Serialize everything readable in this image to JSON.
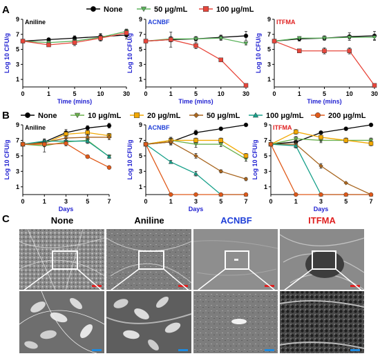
{
  "panel_letters": [
    "A",
    "B",
    "C"
  ],
  "colors": {
    "axis_label": "#1f1fd1",
    "none": "#000000",
    "c10": "#6ab04c",
    "c20": "#f2a800",
    "c50": "#a8651e",
    "c100": "#17a08a",
    "c200": "#e05a1a",
    "a50": "#5bb35b",
    "a100": "#e8463b",
    "scale_red": "#e02020",
    "scale_blue": "#1e8ae0"
  },
  "legend_A": [
    {
      "label": "None",
      "color": "#000000",
      "marker": "circle"
    },
    {
      "label": "50 μg/mL",
      "color": "#5bb35b",
      "marker": "triangle-down"
    },
    {
      "label": "100 μg/mL",
      "color": "#e8463b",
      "marker": "square"
    }
  ],
  "legend_B": [
    {
      "label": "None",
      "color": "#000000",
      "marker": "circle"
    },
    {
      "label": "10 μg/mL",
      "color": "#6ab04c",
      "marker": "triangle-down"
    },
    {
      "label": "20 μg/mL",
      "color": "#f2a800",
      "marker": "square"
    },
    {
      "label": "50 μg/mL",
      "color": "#a8651e",
      "marker": "diamond"
    },
    {
      "label": "100 μg/mL",
      "color": "#17a08a",
      "marker": "triangle-up"
    },
    {
      "label": "200 μg/mL",
      "color": "#e05a1a",
      "marker": "circle"
    }
  ],
  "sem_labels": [
    {
      "label": "None",
      "color": "#000000"
    },
    {
      "label": "Aniline",
      "color": "#000000"
    },
    {
      "label": "ACNBF",
      "color": "#1f3fd8"
    },
    {
      "label": "ITFMA",
      "color": "#e02020"
    }
  ],
  "chart_data": [
    {
      "type": "line",
      "panel": "A",
      "title": "Aniline",
      "title_color": "#000000",
      "x": [
        "0",
        "1",
        "5",
        "10",
        "30"
      ],
      "xlabel": "Time (mins)",
      "ylabel": "Log 10 CFU/g",
      "ylim": [
        0,
        9
      ],
      "yticks": [
        1,
        3,
        5,
        7,
        9
      ],
      "series": [
        {
          "name": "None",
          "values": [
            6.1,
            6.3,
            6.5,
            6.7,
            6.9
          ],
          "err": [
            0.2,
            0.2,
            0.3,
            0.4,
            0.5
          ]
        },
        {
          "name": "50 μg/mL",
          "values": [
            6.1,
            5.9,
            6.1,
            6.6,
            7.4
          ],
          "err": [
            0.2,
            0.2,
            0.3,
            0.4,
            0.3
          ]
        },
        {
          "name": "100 μg/mL",
          "values": [
            6.1,
            5.6,
            5.9,
            6.5,
            7.2
          ],
          "err": [
            0.2,
            0.2,
            0.4,
            0.4,
            0.4
          ]
        }
      ]
    },
    {
      "type": "line",
      "panel": "A",
      "title": "ACNBF",
      "title_color": "#1f3fd8",
      "x": [
        "0",
        "1",
        "5",
        "10",
        "30"
      ],
      "xlabel": "Time (mins)",
      "ylabel": "Log 10 CFU/g",
      "ylim": [
        0,
        9
      ],
      "yticks": [
        1,
        3,
        5,
        7,
        9
      ],
      "series": [
        {
          "name": "None",
          "values": [
            6.1,
            6.3,
            6.4,
            6.6,
            6.8
          ],
          "err": [
            0.2,
            0.3,
            0.3,
            0.3,
            0.6
          ]
        },
        {
          "name": "50 μg/mL",
          "values": [
            6.1,
            6.4,
            6.4,
            6.5,
            5.8
          ],
          "err": [
            0.2,
            0.3,
            0.3,
            0.3,
            0.2
          ]
        },
        {
          "name": "100 μg/mL",
          "values": [
            6.1,
            6.3,
            5.5,
            3.6,
            0.2
          ],
          "err": [
            0.2,
            1.0,
            0.4,
            0.0,
            0.0
          ]
        }
      ]
    },
    {
      "type": "line",
      "panel": "A",
      "title": "ITFMA",
      "title_color": "#e02020",
      "x": [
        "0",
        "1",
        "5",
        "10",
        "30"
      ],
      "xlabel": "Time (mins)",
      "ylabel": "Log 10 CFU/g",
      "ylim": [
        0,
        9
      ],
      "yticks": [
        1,
        3,
        5,
        7,
        9
      ],
      "series": [
        {
          "name": "None",
          "values": [
            6.1,
            6.4,
            6.5,
            6.7,
            6.8
          ],
          "err": [
            0.2,
            0.3,
            0.3,
            0.5,
            0.6
          ]
        },
        {
          "name": "50 μg/mL",
          "values": [
            6.1,
            6.5,
            6.5,
            6.6,
            6.6
          ],
          "err": [
            0.2,
            0.2,
            0.2,
            0.2,
            0.3
          ]
        },
        {
          "name": "100 μg/mL",
          "values": [
            6.1,
            4.8,
            4.8,
            4.8,
            0.2
          ],
          "err": [
            0.2,
            0.1,
            0.4,
            0.4,
            0.0
          ]
        }
      ]
    },
    {
      "type": "line",
      "panel": "B",
      "title": "Aniline",
      "title_color": "#000000",
      "x": [
        "0",
        "1",
        "3",
        "5",
        "7"
      ],
      "xlabel": "Days",
      "ylabel": "Log 10 CFU/g",
      "ylim": [
        0,
        9
      ],
      "yticks": [
        1,
        3,
        5,
        7,
        9
      ],
      "series": [
        {
          "name": "None",
          "values": [
            6.5,
            6.8,
            8.0,
            8.6,
            8.9
          ],
          "err": [
            0.2,
            0.3,
            0.4,
            0.3,
            0.3
          ]
        },
        {
          "name": "10 μg/mL",
          "values": [
            6.5,
            6.3,
            6.8,
            7.0,
            4.9
          ],
          "err": [
            0.2,
            0.8,
            0.4,
            0.3,
            0.2
          ]
        },
        {
          "name": "20 μg/mL",
          "values": [
            6.5,
            6.6,
            7.8,
            8.0,
            7.6
          ],
          "err": [
            0.2,
            0.3,
            0.4,
            0.4,
            0.3
          ]
        },
        {
          "name": "50 μg/mL",
          "values": [
            6.5,
            6.7,
            7.3,
            7.4,
            7.4
          ],
          "err": [
            0.2,
            0.3,
            0.3,
            0.4,
            0.3
          ]
        },
        {
          "name": "100 μg/mL",
          "values": [
            6.5,
            6.9,
            6.9,
            6.9,
            4.9
          ],
          "err": [
            0.2,
            0.3,
            0.3,
            0.3,
            0.2
          ]
        },
        {
          "name": "200 μg/mL",
          "values": [
            6.5,
            6.5,
            6.6,
            4.9,
            3.5
          ],
          "err": [
            0.2,
            0.3,
            0.3,
            0.2,
            0.2
          ]
        }
      ]
    },
    {
      "type": "line",
      "panel": "B",
      "title": "ACNBF",
      "title_color": "#1f3fd8",
      "x": [
        "0",
        "1",
        "3",
        "5",
        "7"
      ],
      "xlabel": "Days",
      "ylabel": "Log 10 CFU/g",
      "ylim": [
        0,
        9
      ],
      "yticks": [
        1,
        3,
        5,
        7,
        9
      ],
      "series": [
        {
          "name": "None",
          "values": [
            6.5,
            6.8,
            8.0,
            8.5,
            9.0
          ],
          "err": [
            0.2,
            0.3,
            0.3,
            0.2,
            0.1
          ]
        },
        {
          "name": "10 μg/mL",
          "values": [
            6.5,
            7.0,
            6.5,
            6.5,
            4.6
          ],
          "err": [
            0.2,
            0.3,
            0.4,
            0.3,
            0.3
          ]
        },
        {
          "name": "20 μg/mL",
          "values": [
            6.5,
            7.0,
            7.0,
            7.0,
            5.0
          ],
          "err": [
            0.2,
            0.4,
            0.3,
            0.3,
            0.3
          ]
        },
        {
          "name": "50 μg/mL",
          "values": [
            6.5,
            6.8,
            5.0,
            3.0,
            2.0
          ],
          "err": [
            0.2,
            0.4,
            0.3,
            0.2,
            0.2
          ]
        },
        {
          "name": "100 μg/mL",
          "values": [
            6.5,
            4.2,
            2.7,
            0.0,
            0.0
          ],
          "err": [
            0.2,
            0.2,
            0.3,
            0.0,
            0.0
          ]
        },
        {
          "name": "200 μg/mL",
          "values": [
            6.5,
            0.0,
            0.0,
            0.0,
            0.0
          ],
          "err": [
            0.2,
            0.0,
            0.0,
            0.0,
            0.0
          ]
        }
      ]
    },
    {
      "type": "line",
      "panel": "B",
      "title": "ITFMA",
      "title_color": "#e02020",
      "x": [
        "0",
        "1",
        "3",
        "5",
        "7"
      ],
      "xlabel": "Days",
      "ylabel": "Log 10 CFU/g",
      "ylim": [
        0,
        9
      ],
      "yticks": [
        1,
        3,
        5,
        7,
        9
      ],
      "series": [
        {
          "name": "None",
          "values": [
            6.5,
            6.8,
            8.0,
            8.5,
            9.0
          ],
          "err": [
            0.2,
            0.3,
            0.2,
            0.2,
            0.1
          ]
        },
        {
          "name": "10 μg/mL",
          "values": [
            6.5,
            7.2,
            7.0,
            7.0,
            7.0
          ],
          "err": [
            0.2,
            0.3,
            0.3,
            0.3,
            0.3
          ]
        },
        {
          "name": "20 μg/mL",
          "values": [
            6.5,
            8.1,
            7.4,
            7.0,
            6.6
          ],
          "err": [
            0.2,
            0.3,
            0.5,
            0.3,
            0.3
          ]
        },
        {
          "name": "50 μg/mL",
          "values": [
            6.5,
            6.5,
            3.7,
            1.5,
            0.0
          ],
          "err": [
            0.2,
            0.3,
            0.3,
            0.0,
            0.0
          ]
        },
        {
          "name": "100 μg/mL",
          "values": [
            6.5,
            6.3,
            0.0,
            0.0,
            0.0
          ],
          "err": [
            0.2,
            0.3,
            0.0,
            0.0,
            0.0
          ]
        },
        {
          "name": "200 μg/mL",
          "values": [
            6.5,
            0.0,
            0.0,
            0.0,
            0.0
          ],
          "err": [
            0.2,
            0.0,
            0.0,
            0.0,
            0.0
          ]
        }
      ]
    }
  ]
}
